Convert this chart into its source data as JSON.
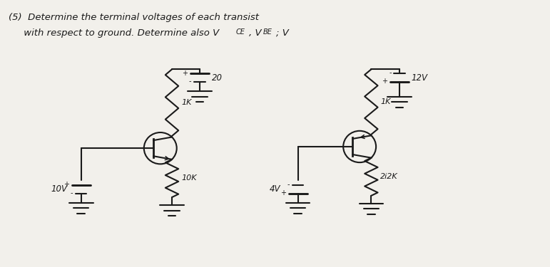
{
  "bg_color": "#f2f0eb",
  "line_color": "#1a1a1a",
  "text_color": "#111111",
  "figsize": [
    7.71,
    3.75
  ],
  "dpi": 100,
  "xlim": [
    0,
    10
  ],
  "ylim": [
    0,
    5
  ],
  "header1": "(5)  Determine the terminal voltages of each transist",
  "header2": "     with respect to ground. Determine also V",
  "header2b": "CE",
  "header2c": ", V",
  "header2d": "BE",
  "header2e": "; V"
}
